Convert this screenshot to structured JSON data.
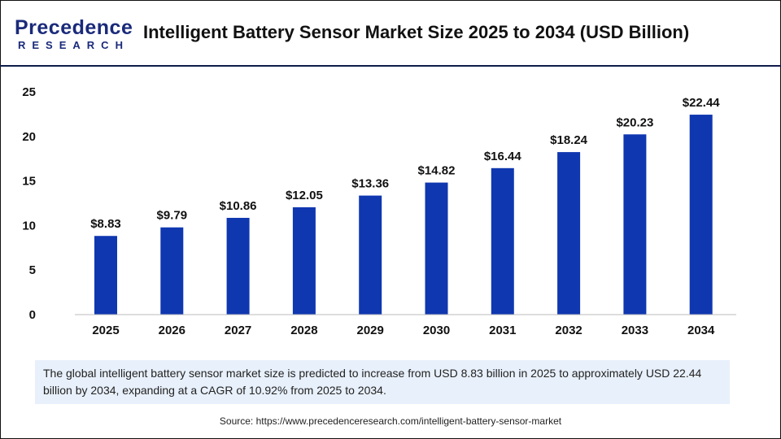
{
  "header": {
    "logo_line1": "Precedence",
    "logo_line2": "RESEARCH",
    "title": "Intelligent Battery Sensor Market Size 2025 to 2034 (USD Billion)"
  },
  "chart_data": {
    "type": "bar",
    "title": "Intelligent Battery Sensor Market Size 2025 to 2034 (USD Billion)",
    "categories": [
      "2025",
      "2026",
      "2027",
      "2028",
      "2029",
      "2030",
      "2031",
      "2032",
      "2033",
      "2034"
    ],
    "values": [
      8.83,
      9.79,
      10.86,
      12.05,
      13.36,
      14.82,
      16.44,
      18.24,
      20.23,
      22.44
    ],
    "data_labels": [
      "$8.83",
      "$9.79",
      "$10.86",
      "$12.05",
      "$13.36",
      "$14.82",
      "$16.44",
      "$18.24",
      "$20.23",
      "$22.44"
    ],
    "yticks": [
      "0",
      "5",
      "10",
      "15",
      "20",
      "25"
    ],
    "ylim": [
      0,
      25
    ],
    "grid": false,
    "bar_color": "#0f37b0"
  },
  "summary": "The global intelligent battery sensor market size is predicted to increase from USD 8.83 billion in 2025 to approximately USD 22.44 billion by 2034, expanding at a CAGR of 10.92% from 2025 to 2034.",
  "source": "Source: https://www.precedenceresearch.com/intelligent-battery-sensor-market"
}
